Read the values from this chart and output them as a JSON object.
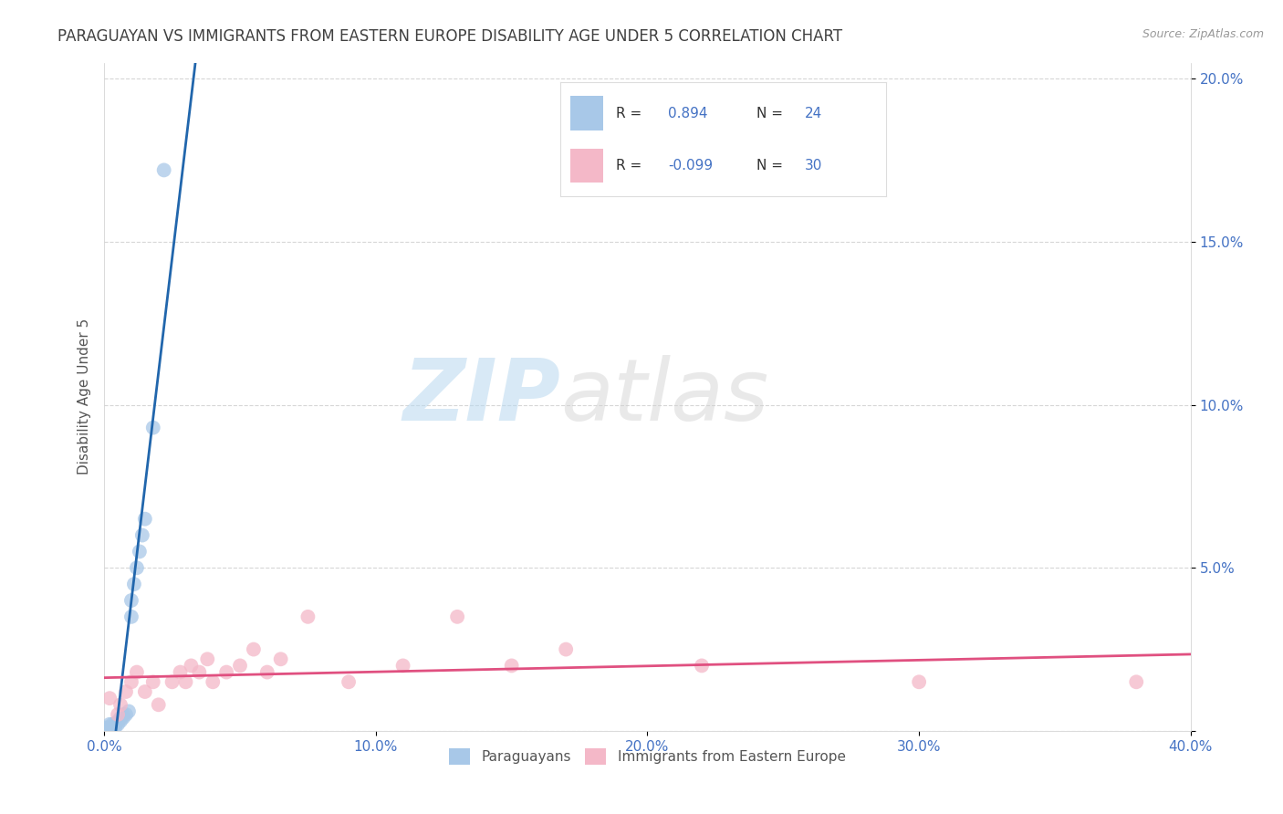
{
  "title": "PARAGUAYAN VS IMMIGRANTS FROM EASTERN EUROPE DISABILITY AGE UNDER 5 CORRELATION CHART",
  "source": "Source: ZipAtlas.com",
  "ylabel_label": "Disability Age Under 5",
  "xlim": [
    0.0,
    0.4
  ],
  "ylim": [
    0.0,
    0.205
  ],
  "xticks": [
    0.0,
    0.1,
    0.2,
    0.3,
    0.4
  ],
  "xtick_labels": [
    "0.0%",
    "10.0%",
    "20.0%",
    "30.0%",
    "40.0%"
  ],
  "yticks": [
    0.0,
    0.05,
    0.1,
    0.15,
    0.2
  ],
  "ytick_labels": [
    "",
    "5.0%",
    "10.0%",
    "15.0%",
    "20.0%"
  ],
  "blue_R": "0.894",
  "blue_N": "24",
  "pink_R": "-0.099",
  "pink_N": "30",
  "blue_scatter_color": "#a8c8e8",
  "blue_line_color": "#2166ac",
  "pink_scatter_color": "#f4b8c8",
  "pink_line_color": "#e05080",
  "legend_blue_label": "Paraguayans",
  "legend_pink_label": "Immigrants from Eastern Europe",
  "watermark_zip": "ZIP",
  "watermark_atlas": "atlas",
  "background_color": "#ffffff",
  "grid_color": "#cccccc",
  "title_color": "#404040",
  "axis_label_color": "#555555",
  "tick_label_color": "#4472c4",
  "legend_R_color": "#333333",
  "legend_val_color": "#4472c4",
  "blue_x": [
    0.001,
    0.002,
    0.002,
    0.003,
    0.003,
    0.004,
    0.004,
    0.005,
    0.005,
    0.006,
    0.006,
    0.007,
    0.007,
    0.008,
    0.009,
    0.01,
    0.01,
    0.011,
    0.012,
    0.013,
    0.014,
    0.015,
    0.018,
    0.022
  ],
  "blue_y": [
    0.001,
    0.001,
    0.002,
    0.001,
    0.002,
    0.001,
    0.002,
    0.002,
    0.003,
    0.003,
    0.004,
    0.004,
    0.005,
    0.005,
    0.006,
    0.035,
    0.04,
    0.045,
    0.05,
    0.055,
    0.06,
    0.065,
    0.093,
    0.172
  ],
  "pink_x": [
    0.002,
    0.005,
    0.006,
    0.008,
    0.01,
    0.012,
    0.015,
    0.018,
    0.02,
    0.025,
    0.028,
    0.03,
    0.032,
    0.035,
    0.038,
    0.04,
    0.045,
    0.05,
    0.055,
    0.06,
    0.065,
    0.075,
    0.09,
    0.11,
    0.13,
    0.15,
    0.17,
    0.22,
    0.3,
    0.38
  ],
  "pink_y": [
    0.01,
    0.005,
    0.008,
    0.012,
    0.015,
    0.018,
    0.012,
    0.015,
    0.008,
    0.015,
    0.018,
    0.015,
    0.02,
    0.018,
    0.022,
    0.015,
    0.018,
    0.02,
    0.025,
    0.018,
    0.022,
    0.035,
    0.015,
    0.02,
    0.035,
    0.02,
    0.025,
    0.02,
    0.015,
    0.015
  ]
}
